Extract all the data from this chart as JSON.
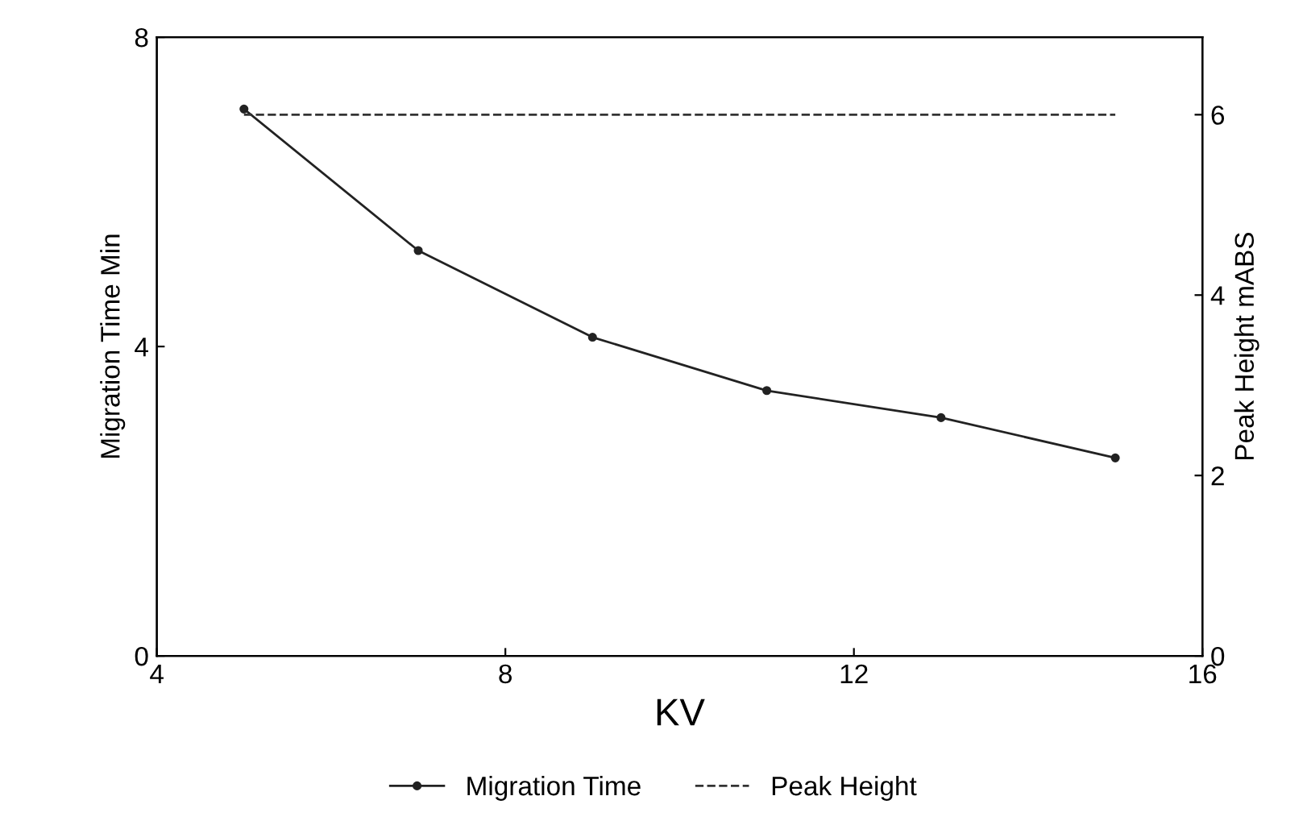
{
  "chart_data": {
    "type": "line",
    "xlabel": "KV",
    "ylabel": "Migration Time Min",
    "y2label": "Peak Height mABS",
    "x": [
      5,
      7,
      9,
      11,
      13,
      15
    ],
    "series": [
      {
        "name": "Migration Time",
        "color": "#222222",
        "values": [
          7.07,
          5.24,
          4.12,
          3.43,
          3.08,
          2.56
        ],
        "marker": "circle",
        "line_style": "solid"
      },
      {
        "name": "Peak Height",
        "color": "#333333",
        "values": [
          6,
          6,
          6,
          6,
          6,
          6
        ],
        "axis": "y2",
        "marker": "none",
        "line_style": "dashed"
      }
    ],
    "xlim": [
      4,
      16
    ],
    "xticks": [
      4,
      8,
      12,
      16
    ],
    "ylim": [
      0,
      8
    ],
    "yticks": [
      0,
      4,
      8
    ],
    "y2lim": [
      0,
      6.86
    ],
    "y2ticks": [
      0,
      2,
      4,
      6
    ],
    "grid": false,
    "legend": "bottom"
  }
}
